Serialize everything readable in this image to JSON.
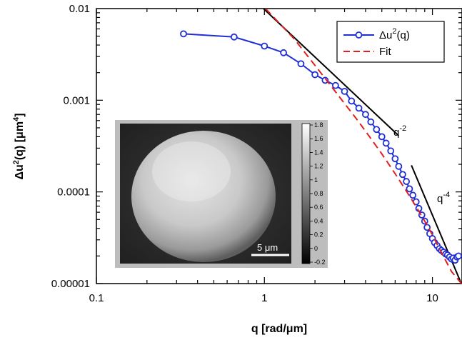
{
  "chart_data": {
    "type": "line",
    "xscale": "log",
    "yscale": "log",
    "xlim": [
      0.1,
      15
    ],
    "ylim": [
      1e-05,
      0.01
    ],
    "xlabel_main": "q [rad/",
    "xlabel_mu": "μ",
    "xlabel_end": "m]",
    "ylabel_delta": "Δ",
    "ylabel_u": "u",
    "ylabel_sup": "2",
    "ylabel_mid": "(q) [",
    "ylabel_mu": "μ",
    "ylabel_m": "m",
    "ylabel_sup2": "4",
    "ylabel_end": "]",
    "x_ticks": [
      {
        "value": 0.1,
        "label": "0.1"
      },
      {
        "value": 1,
        "label": "1"
      },
      {
        "value": 10,
        "label": "10"
      }
    ],
    "y_ticks": [
      {
        "value": 1e-05,
        "label": "0.00001"
      },
      {
        "value": 0.0001,
        "label": "0.0001"
      },
      {
        "value": 0.001,
        "label": "0.001"
      },
      {
        "value": 0.01,
        "label": "0.01"
      }
    ],
    "series": [
      {
        "name_main": "Δu",
        "name_sup": "2",
        "name_end": "(q)",
        "color": "#1f2fd6",
        "style": "line-with-open-circles",
        "x": [
          0.33,
          0.66,
          1.0,
          1.3,
          1.65,
          2.0,
          2.3,
          2.65,
          3.0,
          3.3,
          3.65,
          4.0,
          4.3,
          4.65,
          5.0,
          5.3,
          5.65,
          6.0,
          6.3,
          6.65,
          7.0,
          7.3,
          7.65,
          8.0,
          8.3,
          8.65,
          9.0,
          9.3,
          9.65,
          10.0,
          10.3,
          10.65,
          11.0,
          11.3,
          11.65,
          12.0,
          12.3,
          12.65,
          13.0,
          13.3,
          13.65,
          14.0,
          14.3
        ],
        "y": [
          0.0053,
          0.0049,
          0.0039,
          0.0033,
          0.0025,
          0.0019,
          0.00165,
          0.00145,
          0.00125,
          0.00098,
          0.00082,
          0.0007,
          0.00058,
          0.00048,
          0.0004,
          0.00034,
          0.00028,
          0.00023,
          0.00019,
          0.000155,
          0.00013,
          0.000108,
          9.2e-05,
          7.8e-05,
          6.6e-05,
          5.6e-05,
          4.8e-05,
          4.1e-05,
          3.5e-05,
          3.1e-05,
          2.8e-05,
          2.6e-05,
          2.4e-05,
          2.3e-05,
          2.2e-05,
          2.1e-05,
          2.05e-05,
          1.95e-05,
          1.85e-05,
          1.9e-05,
          1.8e-05,
          1.95e-05,
          2e-05
        ]
      },
      {
        "name": "Fit",
        "color": "#e02020",
        "style": "dashed",
        "x": [
          1.02,
          1.5,
          2.0,
          2.5,
          3.0,
          3.5,
          4.0,
          5.0,
          6.0,
          7.0,
          8.0,
          9.0,
          10.0,
          11.0,
          12.0,
          13.0,
          14.0,
          15.0
        ],
        "y": [
          0.0099,
          0.0047,
          0.0024,
          0.00142,
          0.00092,
          0.00064,
          0.00046,
          0.00026,
          0.000158,
          0.000102,
          6.9e-05,
          4.8e-05,
          3.4e-05,
          2.4e-05,
          1.78e-05,
          1.35e-05,
          1.15e-05,
          9.8e-06
        ]
      }
    ],
    "annotations": [
      {
        "base": "q",
        "exp": "-2"
      },
      {
        "base": "q",
        "exp": "-4"
      }
    ],
    "guide_lines": [
      {
        "x": [
          0.97,
          6.3
        ],
        "y": [
          0.0103,
          0.00041
        ]
      },
      {
        "x": [
          7.5,
          15.0
        ],
        "y": [
          0.000195,
          9.6e-06
        ]
      }
    ],
    "legend": {
      "position": "top-right"
    },
    "inset": {
      "scale_bar_num": "5 ",
      "scale_bar_mu": "μ",
      "scale_bar_unit": "m",
      "colorbar_ticks": [
        "1.8",
        "1.6",
        "1.4",
        "1.2",
        "1",
        "0.8",
        "0.6",
        "0.4",
        "0.2",
        "0",
        "-0.2"
      ]
    }
  }
}
